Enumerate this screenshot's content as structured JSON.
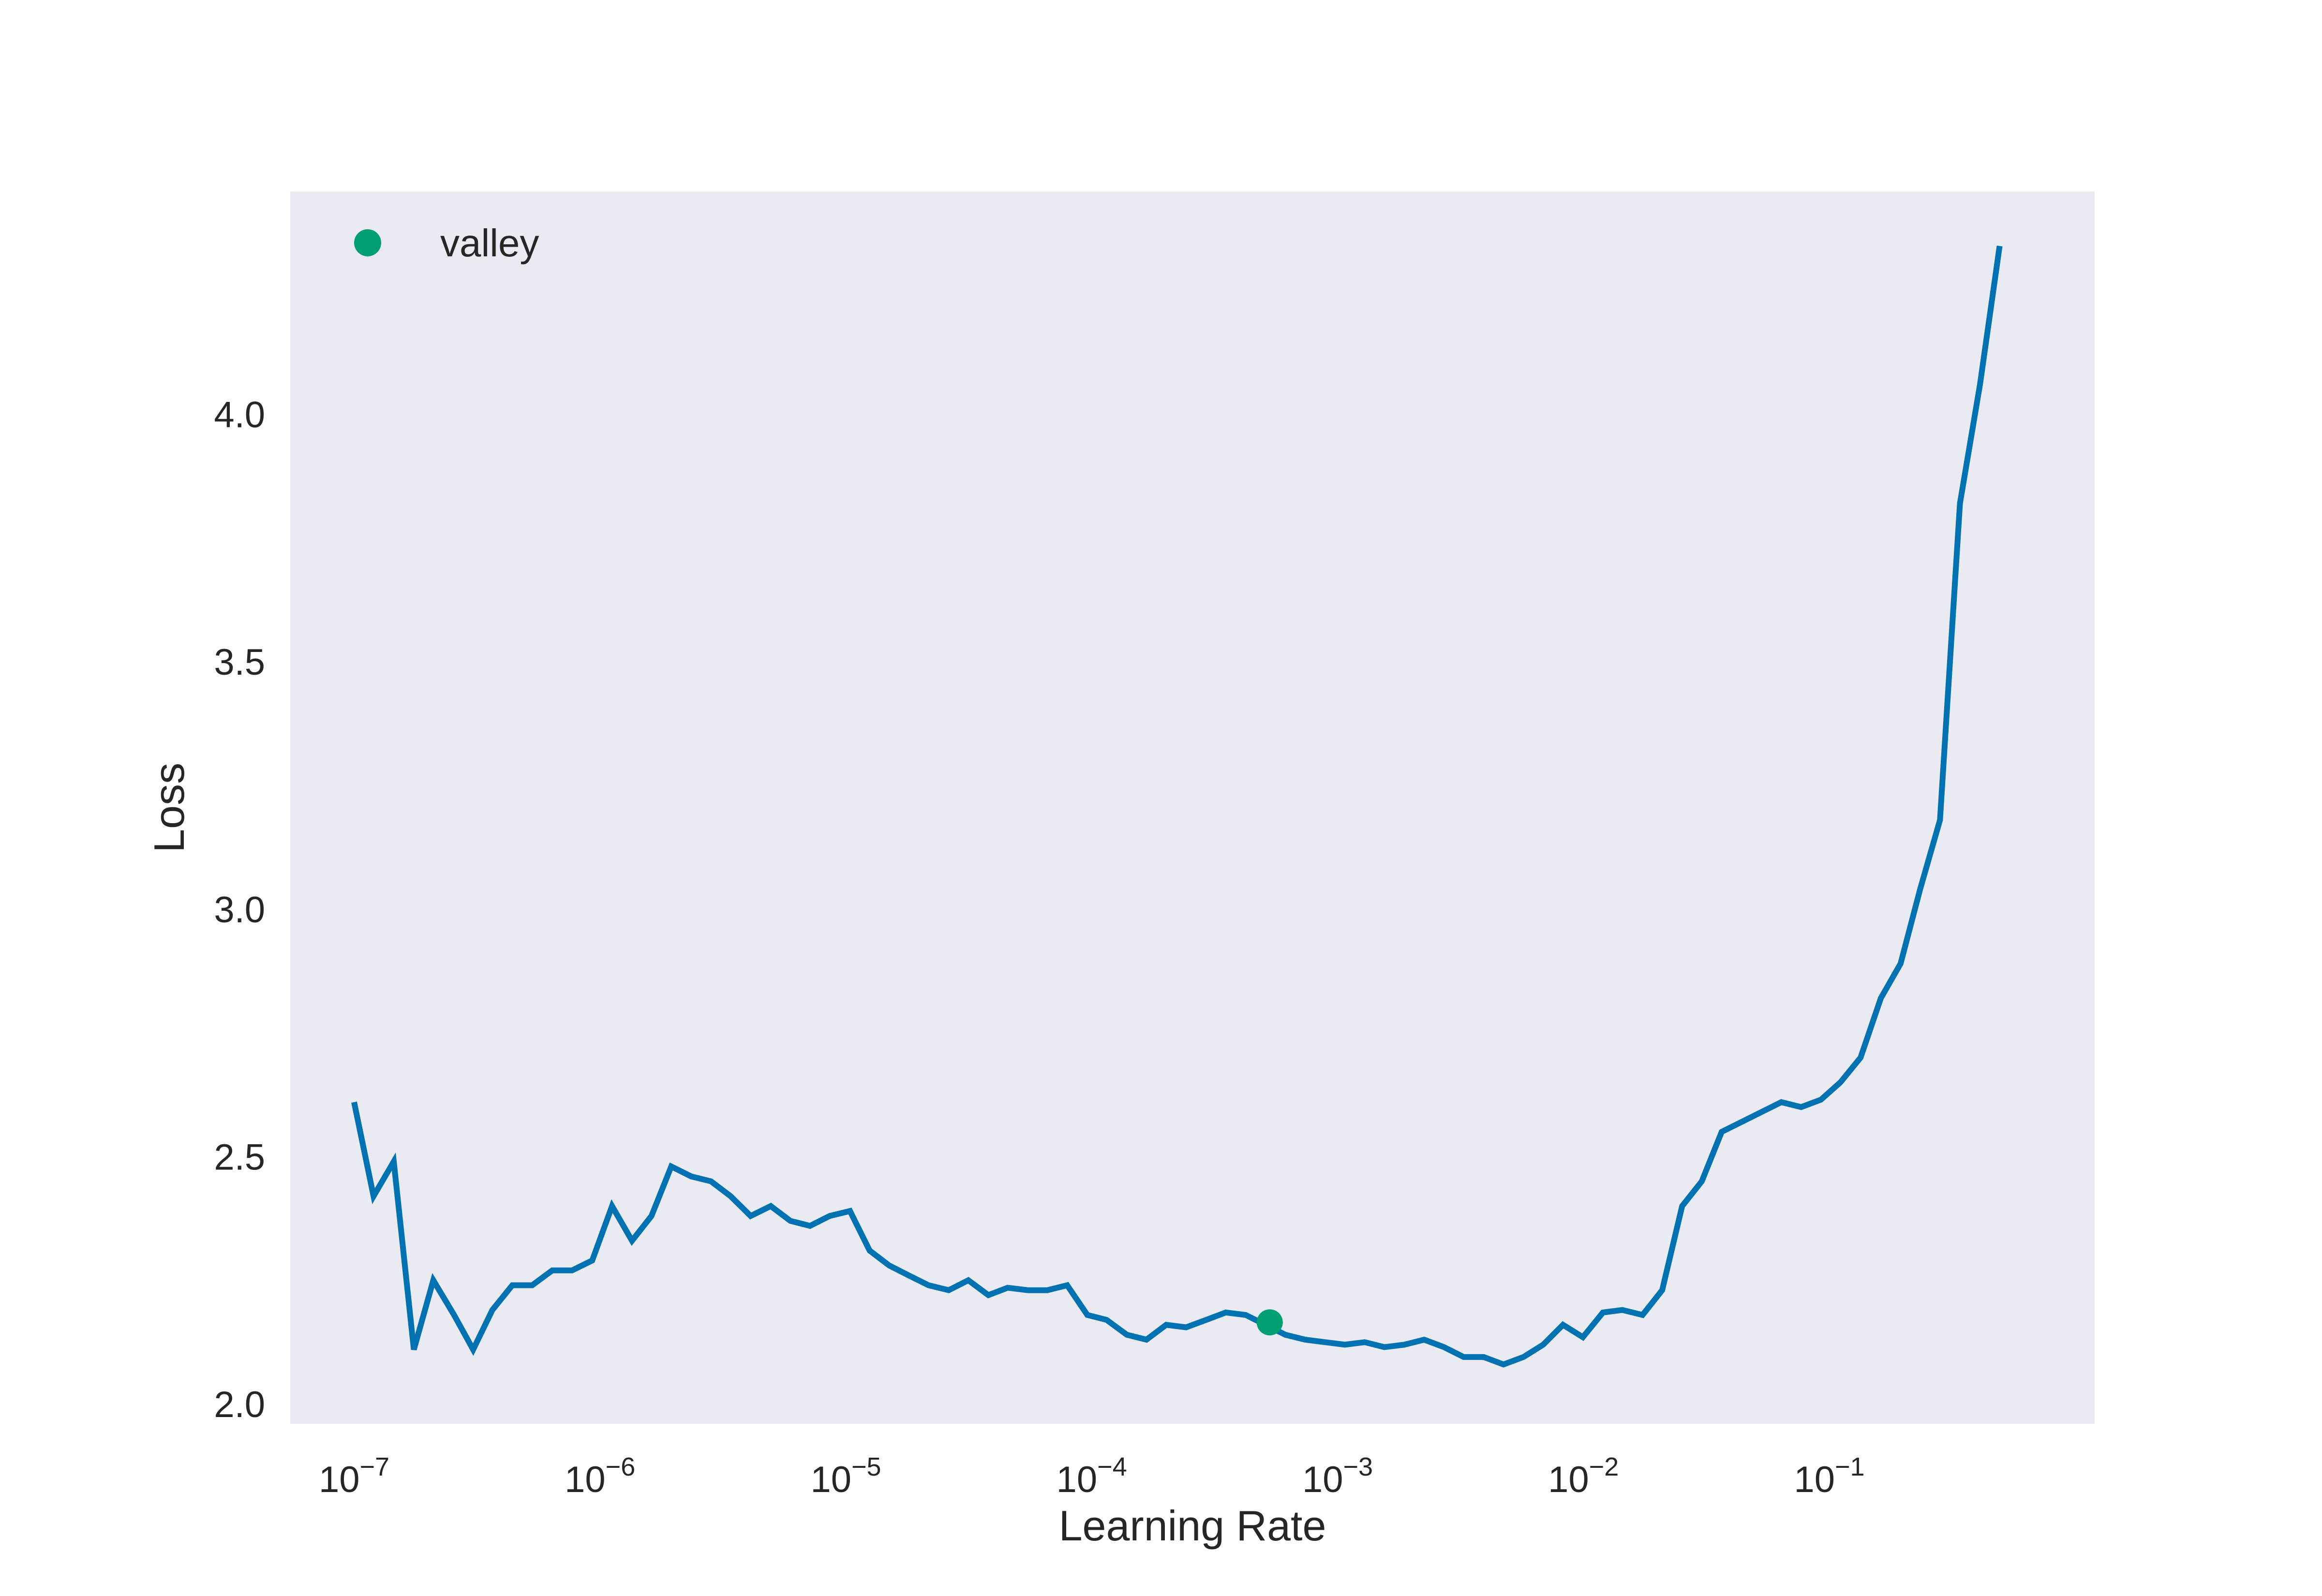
{
  "chart_data": {
    "type": "line",
    "title": "",
    "xlabel": "Learning Rate",
    "ylabel": "Loss",
    "x_scale": "log",
    "xlim": [
      5.5e-08,
      1.2
    ],
    "ylim": [
      1.96,
      4.45
    ],
    "grid": false,
    "legend": {
      "placement": "top-left",
      "entries": [
        "valley"
      ]
    },
    "x_ticks": [
      {
        "value": 1e-07,
        "base": "10",
        "exp": "−7"
      },
      {
        "value": 1e-06,
        "base": "10",
        "exp": "−6"
      },
      {
        "value": 1e-05,
        "base": "10",
        "exp": "−5"
      },
      {
        "value": 0.0001,
        "base": "10",
        "exp": "−4"
      },
      {
        "value": 0.001,
        "base": "10",
        "exp": "−3"
      },
      {
        "value": 0.01,
        "base": "10",
        "exp": "−2"
      },
      {
        "value": 0.1,
        "base": "10",
        "exp": "−1"
      }
    ],
    "y_ticks": [
      {
        "value": 2.0,
        "label": "2.0"
      },
      {
        "value": 2.5,
        "label": "2.5"
      },
      {
        "value": 3.0,
        "label": "3.0"
      },
      {
        "value": 3.5,
        "label": "3.5"
      },
      {
        "value": 4.0,
        "label": "4.0"
      }
    ],
    "series": [
      {
        "x": [
          1e-07,
          1.2e-07,
          1.45e-07,
          1.75e-07,
          2.1e-07,
          2.55e-07,
          3.05e-07,
          3.65e-07,
          4.4e-07,
          5.3e-07,
          6.4e-07,
          7.7e-07,
          9.3e-07,
          1.12e-06,
          1.35e-06,
          1.62e-06,
          1.95e-06,
          2.35e-06,
          2.83e-06,
          3.4e-06,
          4.1e-06,
          4.95e-06,
          5.95e-06,
          7.15e-06,
          8.6e-06,
          1.04e-05,
          1.25e-05,
          1.5e-05,
          1.8e-05,
          2.17e-05,
          2.62e-05,
          3.15e-05,
          3.8e-05,
          4.55e-05,
          5.5e-05,
          6.6e-05,
          7.95e-05,
          9.6e-05,
          0.000115,
          0.000139,
          0.000167,
          0.000201,
          0.000242,
          0.000292,
          0.000351,
          0.000423,
          0.000509,
          0.000613,
          0.000738,
          0.000889,
          0.00107,
          0.00129,
          0.00155,
          0.00187,
          0.00225,
          0.00271,
          0.00326,
          0.00393,
          0.00473,
          0.0057,
          0.00686,
          0.00826,
          0.00995,
          0.012,
          0.0144,
          0.0174,
          0.0209,
          0.0252,
          0.0303,
          0.0365,
          0.044,
          0.053,
          0.0638,
          0.0768,
          0.0925,
          0.111,
          0.134,
          0.162,
          0.195,
          0.234,
          0.282,
          0.34,
          0.41,
          0.493
        ],
        "y": [
          2.61,
          2.42,
          2.49,
          2.11,
          2.25,
          2.18,
          2.11,
          2.19,
          2.24,
          2.24,
          2.27,
          2.27,
          2.29,
          2.4,
          2.33,
          2.38,
          2.48,
          2.46,
          2.45,
          2.42,
          2.38,
          2.4,
          2.37,
          2.36,
          2.38,
          2.39,
          2.31,
          2.28,
          2.26,
          2.24,
          2.23,
          2.25,
          2.22,
          2.235,
          2.23,
          2.23,
          2.24,
          2.18,
          2.17,
          2.14,
          2.13,
          2.16,
          2.155,
          2.17,
          2.185,
          2.18,
          2.16,
          2.14,
          2.13,
          2.125,
          2.12,
          2.125,
          2.115,
          2.12,
          2.13,
          2.115,
          2.095,
          2.095,
          2.08,
          2.095,
          2.12,
          2.16,
          2.135,
          2.185,
          2.19,
          2.18,
          2.23,
          2.4,
          2.45,
          2.55,
          2.57,
          2.59,
          2.61,
          2.6,
          2.615,
          2.65,
          2.7,
          2.82,
          2.89,
          3.04,
          3.18,
          3.82,
          4.06,
          4.34
        ]
      }
    ],
    "annotations": [
      {
        "name": "valley",
        "x": 0.00053,
        "y": 2.165
      }
    ],
    "colors": {
      "line": "#0072b2",
      "valley_marker": "#009e73",
      "plot_background": "#eaeaf2",
      "text": "#262626"
    }
  }
}
